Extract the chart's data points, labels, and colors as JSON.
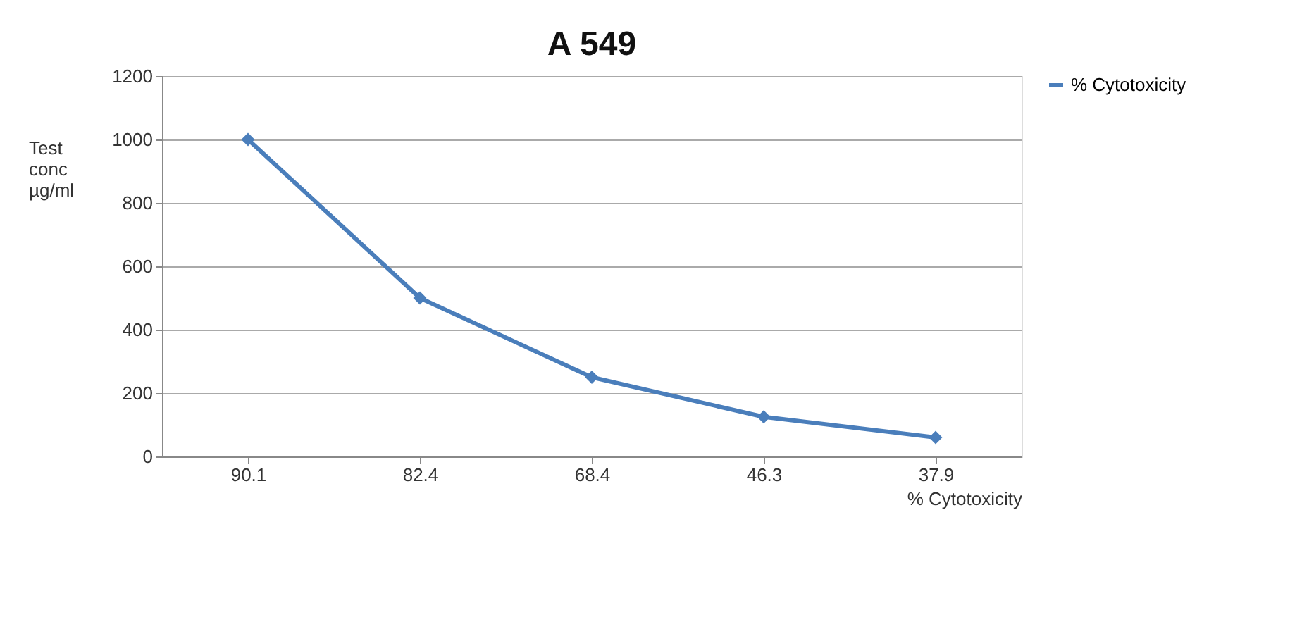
{
  "chart_data": {
    "type": "line",
    "title": "A 549",
    "xlabel": "% Cytotoxicity",
    "ylabel": "Test conc µg/ml",
    "categories": [
      "90.1",
      "82.4",
      "68.4",
      "46.3",
      "37.9"
    ],
    "series": [
      {
        "name": "% Cytotoxicity",
        "color": "#4a7ebb",
        "values": [
          1000,
          500,
          250,
          125,
          60
        ]
      }
    ],
    "ylim": [
      0,
      1200
    ],
    "yticks": [
      0,
      200,
      400,
      600,
      800,
      1000,
      1200
    ],
    "grid": "y",
    "legend": "right",
    "marker": "diamond",
    "line_style": "solid"
  }
}
